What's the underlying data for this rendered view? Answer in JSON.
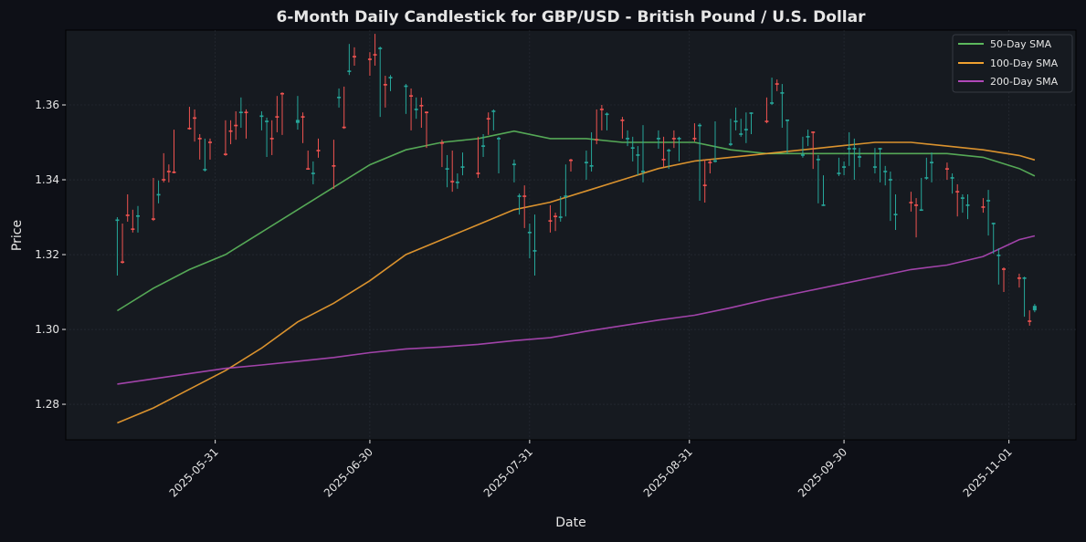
{
  "chart_data": {
    "type": "candlestick",
    "title": "6-Month Daily Candlestick for GBP/USD - British Pound / U.S. Dollar",
    "xlabel": "Date",
    "ylabel": "Price",
    "xlim": [
      "2025-05-02",
      "2025-11-14"
    ],
    "ylim": [
      1.2705,
      1.38
    ],
    "grid": true,
    "legend_placement": "top-right",
    "x_ticks": [
      "2025-05-31",
      "2025-06-30",
      "2025-07-31",
      "2025-08-31",
      "2025-09-30",
      "2025-11-01"
    ],
    "y_ticks": [
      "1.28",
      "1.30",
      "1.32",
      "1.34",
      "1.36"
    ],
    "colors": {
      "up": "#26a69a",
      "down": "#ef5350",
      "background": "#0e1017",
      "plot_background": "#161a20"
    },
    "candles_fields": [
      "date",
      "open",
      "high",
      "low",
      "close"
    ],
    "candles": [
      [
        "2025-05-12",
        1.329,
        1.33,
        1.3144,
        1.3294
      ],
      [
        "2025-05-13",
        1.3182,
        1.3283,
        1.3176,
        1.3178
      ],
      [
        "2025-05-14",
        1.3307,
        1.3361,
        1.3288,
        1.3303
      ],
      [
        "2025-05-15",
        1.327,
        1.332,
        1.3259,
        1.3266
      ],
      [
        "2025-05-16",
        1.3301,
        1.333,
        1.3259,
        1.3305
      ],
      [
        "2025-05-19",
        1.3297,
        1.3405,
        1.329,
        1.3293
      ],
      [
        "2025-05-20",
        1.3358,
        1.3398,
        1.3337,
        1.3362
      ],
      [
        "2025-05-21",
        1.3402,
        1.3471,
        1.3393,
        1.3398
      ],
      [
        "2025-05-22",
        1.3424,
        1.3441,
        1.3393,
        1.342
      ],
      [
        "2025-05-23",
        1.3422,
        1.3534,
        1.3417,
        1.3418
      ],
      [
        "2025-05-26",
        1.3539,
        1.3595,
        1.3534,
        1.3535
      ],
      [
        "2025-05-27",
        1.3567,
        1.3588,
        1.3502,
        1.3563
      ],
      [
        "2025-05-28",
        1.3512,
        1.3522,
        1.3454,
        1.3508
      ],
      [
        "2025-05-29",
        1.3425,
        1.351,
        1.3422,
        1.3429
      ],
      [
        "2025-05-30",
        1.3502,
        1.351,
        1.3454,
        1.3498
      ],
      [
        "2025-06-02",
        1.347,
        1.3559,
        1.3464,
        1.3466
      ],
      [
        "2025-06-03",
        1.3532,
        1.3559,
        1.3495,
        1.3528
      ],
      [
        "2025-06-04",
        1.3547,
        1.3583,
        1.3507,
        1.3543
      ],
      [
        "2025-06-05",
        1.3578,
        1.362,
        1.3539,
        1.3582
      ],
      [
        "2025-06-06",
        1.3582,
        1.3588,
        1.351,
        1.3578
      ],
      [
        "2025-06-09",
        1.3568,
        1.3583,
        1.3532,
        1.3572
      ],
      [
        "2025-06-10",
        1.3554,
        1.3566,
        1.3461,
        1.3558
      ],
      [
        "2025-06-11",
        1.3512,
        1.3559,
        1.3466,
        1.3508
      ],
      [
        "2025-06-12",
        1.357,
        1.3624,
        1.3527,
        1.3566
      ],
      [
        "2025-06-13",
        1.3632,
        1.3634,
        1.352,
        1.3628
      ],
      [
        "2025-06-16",
        1.3552,
        1.3624,
        1.3534,
        1.356
      ],
      [
        "2025-06-17",
        1.357,
        1.358,
        1.3498,
        1.3566
      ],
      [
        "2025-06-18",
        1.3431,
        1.3478,
        1.3427,
        1.3427
      ],
      [
        "2025-06-19",
        1.3415,
        1.3449,
        1.3388,
        1.3419
      ],
      [
        "2025-06-20",
        1.348,
        1.351,
        1.3459,
        1.3476
      ],
      [
        "2025-06-23",
        1.3439,
        1.3507,
        1.3376,
        1.3435
      ],
      [
        "2025-06-24",
        1.3618,
        1.3644,
        1.3593,
        1.3622
      ],
      [
        "2025-06-25",
        1.3542,
        1.3649,
        1.3536,
        1.3538
      ],
      [
        "2025-06-26",
        1.3688,
        1.3763,
        1.368,
        1.3692
      ],
      [
        "2025-06-27",
        1.3731,
        1.3754,
        1.3705,
        1.3727
      ],
      [
        "2025-06-30",
        1.3724,
        1.3741,
        1.3678,
        1.372
      ],
      [
        "2025-07-01",
        1.3736,
        1.379,
        1.3705,
        1.3732
      ],
      [
        "2025-07-02",
        1.3749,
        1.3756,
        1.3568,
        1.3753
      ],
      [
        "2025-07-03",
        1.3656,
        1.3678,
        1.3593,
        1.3652
      ],
      [
        "2025-07-04",
        1.3671,
        1.368,
        1.3637,
        1.3675
      ],
      [
        "2025-07-07",
        1.3648,
        1.3656,
        1.3576,
        1.3652
      ],
      [
        "2025-07-08",
        1.3626,
        1.3644,
        1.3532,
        1.3622
      ],
      [
        "2025-07-09",
        1.3586,
        1.362,
        1.3563,
        1.359
      ],
      [
        "2025-07-10",
        1.36,
        1.362,
        1.3539,
        1.3596
      ],
      [
        "2025-07-11",
        1.3582,
        1.3583,
        1.3485,
        1.3578
      ],
      [
        "2025-07-14",
        1.35,
        1.3507,
        1.3434,
        1.3496
      ],
      [
        "2025-07-15",
        1.3427,
        1.3466,
        1.338,
        1.3431
      ],
      [
        "2025-07-16",
        1.3397,
        1.3478,
        1.3368,
        1.3393
      ],
      [
        "2025-07-17",
        1.3391,
        1.3417,
        1.3376,
        1.3395
      ],
      [
        "2025-07-18",
        1.3432,
        1.3473,
        1.3412,
        1.3436
      ],
      [
        "2025-07-21",
        1.3419,
        1.3515,
        1.3405,
        1.3415
      ],
      [
        "2025-07-22",
        1.3488,
        1.3522,
        1.3461,
        1.3492
      ],
      [
        "2025-07-23",
        1.3565,
        1.358,
        1.352,
        1.3561
      ],
      [
        "2025-07-24",
        1.3581,
        1.3588,
        1.3532,
        1.3585
      ],
      [
        "2025-07-25",
        1.3508,
        1.3515,
        1.3417,
        1.3512
      ],
      [
        "2025-07-28",
        1.3439,
        1.3454,
        1.3393,
        1.3443
      ],
      [
        "2025-07-29",
        1.3354,
        1.3363,
        1.3307,
        1.3358
      ],
      [
        "2025-07-30",
        1.3358,
        1.3385,
        1.3271,
        1.3354
      ],
      [
        "2025-07-31",
        1.3257,
        1.3283,
        1.319,
        1.3261
      ],
      [
        "2025-08-01",
        1.3208,
        1.3307,
        1.3144,
        1.3212
      ],
      [
        "2025-08-04",
        1.3292,
        1.3332,
        1.3259,
        1.3288
      ],
      [
        "2025-08-05",
        1.3304,
        1.3312,
        1.3263,
        1.33
      ],
      [
        "2025-08-06",
        1.3298,
        1.3356,
        1.3288,
        1.3302
      ],
      [
        "2025-08-07",
        1.3354,
        1.3441,
        1.3302,
        1.3358
      ],
      [
        "2025-08-08",
        1.3454,
        1.3456,
        1.3422,
        1.345
      ],
      [
        "2025-08-11",
        1.3444,
        1.3478,
        1.34,
        1.3448
      ],
      [
        "2025-08-12",
        1.3435,
        1.3527,
        1.3422,
        1.3439
      ],
      [
        "2025-08-13",
        1.3509,
        1.3588,
        1.3495,
        1.3505
      ],
      [
        "2025-08-14",
        1.359,
        1.36,
        1.3532,
        1.3586
      ],
      [
        "2025-08-15",
        1.3573,
        1.358,
        1.3532,
        1.3577
      ],
      [
        "2025-08-18",
        1.3561,
        1.3568,
        1.351,
        1.3557
      ],
      [
        "2025-08-19",
        1.3508,
        1.3532,
        1.349,
        1.3512
      ],
      [
        "2025-08-20",
        1.3483,
        1.3515,
        1.3449,
        1.3487
      ],
      [
        "2025-08-21",
        1.3464,
        1.349,
        1.3412,
        1.3468
      ],
      [
        "2025-08-22",
        1.342,
        1.3546,
        1.3393,
        1.3424
      ],
      [
        "2025-08-25",
        1.3508,
        1.3532,
        1.3483,
        1.3512
      ],
      [
        "2025-08-26",
        1.3456,
        1.3515,
        1.3434,
        1.3452
      ],
      [
        "2025-08-27",
        1.3476,
        1.3483,
        1.3429,
        1.348
      ],
      [
        "2025-08-28",
        1.3512,
        1.3532,
        1.3485,
        1.3508
      ],
      [
        "2025-08-29",
        1.3508,
        1.3515,
        1.3449,
        1.3512
      ],
      [
        "2025-09-01",
        1.3512,
        1.3551,
        1.3502,
        1.3508
      ],
      [
        "2025-09-02",
        1.3543,
        1.3551,
        1.3344,
        1.3547
      ],
      [
        "2025-09-03",
        1.3387,
        1.3454,
        1.3339,
        1.3383
      ],
      [
        "2025-09-04",
        1.3448,
        1.3454,
        1.3417,
        1.3444
      ],
      [
        "2025-09-05",
        1.3448,
        1.3556,
        1.3446,
        1.3452
      ],
      [
        "2025-09-08",
        1.3493,
        1.3563,
        1.349,
        1.3497
      ],
      [
        "2025-09-09",
        1.3554,
        1.3593,
        1.3532,
        1.3558
      ],
      [
        "2025-09-10",
        1.352,
        1.3563,
        1.3515,
        1.3524
      ],
      [
        "2025-09-11",
        1.3532,
        1.358,
        1.3498,
        1.3536
      ],
      [
        "2025-09-12",
        1.3576,
        1.358,
        1.3522,
        1.358
      ],
      [
        "2025-09-15",
        1.3558,
        1.362,
        1.3551,
        1.3554
      ],
      [
        "2025-09-16",
        1.3603,
        1.3673,
        1.36,
        1.3607
      ],
      [
        "2025-09-17",
        1.3658,
        1.3668,
        1.3637,
        1.3654
      ],
      [
        "2025-09-18",
        1.363,
        1.3656,
        1.3539,
        1.3634
      ],
      [
        "2025-09-19",
        1.3557,
        1.3561,
        1.3471,
        1.3561
      ],
      [
        "2025-09-22",
        1.3464,
        1.3515,
        1.3459,
        1.3468
      ],
      [
        "2025-09-23",
        1.3513,
        1.3534,
        1.349,
        1.3517
      ],
      [
        "2025-09-24",
        1.3529,
        1.3529,
        1.3429,
        1.3525
      ],
      [
        "2025-09-25",
        1.3452,
        1.3466,
        1.3337,
        1.3456
      ],
      [
        "2025-09-26",
        1.333,
        1.3412,
        1.333,
        1.3334
      ],
      [
        "2025-09-29",
        1.3415,
        1.3459,
        1.341,
        1.3419
      ],
      [
        "2025-09-30",
        1.3432,
        1.3449,
        1.3412,
        1.3436
      ],
      [
        "2025-10-01",
        1.3481,
        1.3527,
        1.3437,
        1.3485
      ],
      [
        "2025-10-02",
        1.3481,
        1.351,
        1.34,
        1.3485
      ],
      [
        "2025-10-03",
        1.3459,
        1.3485,
        1.3434,
        1.3463
      ],
      [
        "2025-10-06",
        1.3432,
        1.3485,
        1.3417,
        1.3436
      ],
      [
        "2025-10-07",
        1.3481,
        1.3485,
        1.3393,
        1.3485
      ],
      [
        "2025-10-08",
        1.342,
        1.3437,
        1.3385,
        1.3424
      ],
      [
        "2025-10-09",
        1.3398,
        1.3422,
        1.329,
        1.3402
      ],
      [
        "2025-10-10",
        1.3305,
        1.3361,
        1.3266,
        1.3309
      ],
      [
        "2025-10-13",
        1.3341,
        1.3368,
        1.3315,
        1.3337
      ],
      [
        "2025-10-14",
        1.3334,
        1.3351,
        1.3246,
        1.333
      ],
      [
        "2025-10-15",
        1.3317,
        1.3405,
        1.3317,
        1.3321
      ],
      [
        "2025-10-16",
        1.3403,
        1.3459,
        1.34,
        1.3407
      ],
      [
        "2025-10-17",
        1.3444,
        1.3473,
        1.3393,
        1.3448
      ],
      [
        "2025-10-20",
        1.3431,
        1.3446,
        1.34,
        1.3427
      ],
      [
        "2025-10-21",
        1.3403,
        1.3417,
        1.3363,
        1.3407
      ],
      [
        "2025-10-22",
        1.337,
        1.3388,
        1.3302,
        1.3366
      ],
      [
        "2025-10-23",
        1.3349,
        1.3361,
        1.3312,
        1.3353
      ],
      [
        "2025-10-24",
        1.333,
        1.3361,
        1.3295,
        1.3334
      ],
      [
        "2025-10-27",
        1.3329,
        1.3351,
        1.3312,
        1.3325
      ],
      [
        "2025-10-28",
        1.3342,
        1.3373,
        1.3251,
        1.3346
      ],
      [
        "2025-10-29",
        1.3281,
        1.3285,
        1.3202,
        1.3285
      ],
      [
        "2025-10-30",
        1.3196,
        1.3217,
        1.312,
        1.32
      ],
      [
        "2025-10-31",
        1.3163,
        1.3166,
        1.31,
        1.3159
      ],
      [
        "2025-11-03",
        1.3139,
        1.3149,
        1.3112,
        1.3135
      ],
      [
        "2025-11-04",
        1.3135,
        1.3141,
        1.3034,
        1.3139
      ],
      [
        "2025-11-05",
        1.3024,
        1.3051,
        1.301,
        1.302
      ],
      [
        "2025-11-06",
        1.3051,
        1.3068,
        1.3046,
        1.3063
      ]
    ],
    "series": [
      {
        "name": "50-Day SMA",
        "color": "#5cb85c",
        "x": [
          "2025-05-12",
          "2025-05-19",
          "2025-05-26",
          "2025-06-02",
          "2025-06-09",
          "2025-06-16",
          "2025-06-23",
          "2025-06-30",
          "2025-07-07",
          "2025-07-14",
          "2025-07-21",
          "2025-07-28",
          "2025-08-04",
          "2025-08-11",
          "2025-08-18",
          "2025-08-25",
          "2025-09-01",
          "2025-09-08",
          "2025-09-15",
          "2025-09-22",
          "2025-09-29",
          "2025-10-06",
          "2025-10-13",
          "2025-10-20",
          "2025-10-27",
          "2025-11-03",
          "2025-11-06"
        ],
        "values": [
          1.305,
          1.311,
          1.316,
          1.32,
          1.326,
          1.332,
          1.338,
          1.344,
          1.348,
          1.35,
          1.351,
          1.353,
          1.351,
          1.351,
          1.35,
          1.35,
          1.35,
          1.348,
          1.347,
          1.347,
          1.347,
          1.347,
          1.347,
          1.347,
          1.346,
          1.343,
          1.341
        ]
      },
      {
        "name": "100-Day SMA",
        "color": "#f0a030",
        "x": [
          "2025-05-12",
          "2025-05-19",
          "2025-05-26",
          "2025-06-02",
          "2025-06-09",
          "2025-06-16",
          "2025-06-23",
          "2025-06-30",
          "2025-07-07",
          "2025-07-14",
          "2025-07-21",
          "2025-07-28",
          "2025-08-04",
          "2025-08-11",
          "2025-08-18",
          "2025-08-25",
          "2025-09-01",
          "2025-09-08",
          "2025-09-15",
          "2025-09-22",
          "2025-09-29",
          "2025-10-06",
          "2025-10-13",
          "2025-10-20",
          "2025-10-27",
          "2025-11-03",
          "2025-11-06"
        ],
        "values": [
          1.275,
          1.279,
          1.284,
          1.289,
          1.295,
          1.302,
          1.307,
          1.313,
          1.32,
          1.324,
          1.328,
          1.332,
          1.334,
          1.337,
          1.34,
          1.343,
          1.345,
          1.346,
          1.347,
          1.348,
          1.349,
          1.35,
          1.35,
          1.349,
          1.348,
          1.3465,
          1.3453
        ]
      },
      {
        "name": "200-Day SMA",
        "color": "#b048b8",
        "x": [
          "2025-05-12",
          "2025-05-19",
          "2025-05-26",
          "2025-06-02",
          "2025-06-09",
          "2025-06-16",
          "2025-06-23",
          "2025-06-30",
          "2025-07-07",
          "2025-07-14",
          "2025-07-21",
          "2025-07-28",
          "2025-08-04",
          "2025-08-11",
          "2025-08-18",
          "2025-08-25",
          "2025-09-01",
          "2025-09-08",
          "2025-09-15",
          "2025-09-22",
          "2025-09-29",
          "2025-10-06",
          "2025-10-13",
          "2025-10-20",
          "2025-10-27",
          "2025-11-03",
          "2025-11-06"
        ],
        "values": [
          1.2854,
          1.2868,
          1.2882,
          1.2896,
          1.2905,
          1.2915,
          1.2925,
          1.2938,
          1.2948,
          1.2953,
          1.296,
          1.297,
          1.2978,
          1.2995,
          1.301,
          1.3025,
          1.3038,
          1.3058,
          1.308,
          1.31,
          1.312,
          1.314,
          1.316,
          1.3172,
          1.3195,
          1.324,
          1.325
        ]
      }
    ]
  }
}
